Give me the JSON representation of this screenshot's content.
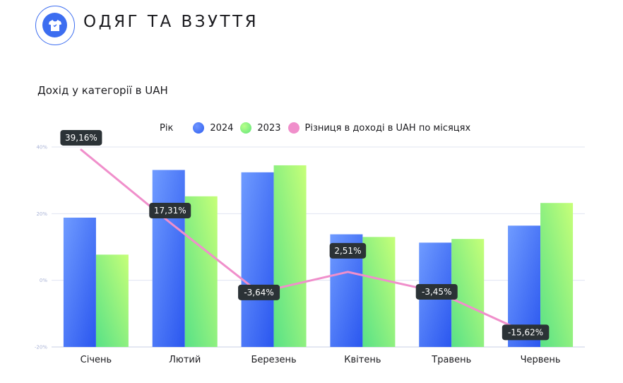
{
  "header": {
    "title": "ОДЯГ ТА ВЗУТТЯ",
    "icon": "tshirt-icon",
    "accent": "#3c6df0"
  },
  "chart_title": "Дохід у категорії в UAH",
  "legend": {
    "title": "Рік",
    "items": [
      {
        "label": "2024",
        "color": "#3e6cf4"
      },
      {
        "label": "2023",
        "color": "#7ff06a"
      },
      {
        "label": "Різниця в доході в UAH по місяцях",
        "color": "#f08fcb"
      }
    ]
  },
  "chart_data": {
    "type": "bar",
    "categories": [
      "Січень",
      "Лютий",
      "Березень",
      "Квітень",
      "Травень",
      "Червень"
    ],
    "series": [
      {
        "name": "2024",
        "values": [
          18.8,
          33.1,
          32.4,
          13.8,
          11.3,
          16.4
        ],
        "color": "#3e6cf4"
      },
      {
        "name": "2023",
        "values": [
          7.7,
          25.2,
          34.5,
          13.0,
          12.4,
          23.2
        ],
        "color": "#7ff06a"
      }
    ],
    "line": {
      "name": "Різниця в доході в UAH по місяцях",
      "values": [
        39.16,
        17.31,
        -3.64,
        2.51,
        -3.45,
        -15.62
      ],
      "labels": [
        "39,16%",
        "17,31%",
        "-3,64%",
        "2,51%",
        "-3,45%",
        "-15,62%"
      ],
      "color": "#f08fcb"
    },
    "y_ticks": [
      "40%",
      "20%",
      "0%",
      "-20%"
    ],
    "y_tick_values": [
      40,
      20,
      0,
      -20
    ],
    "ylim": [
      -20,
      40
    ],
    "grid": true,
    "legend_position": "top"
  }
}
